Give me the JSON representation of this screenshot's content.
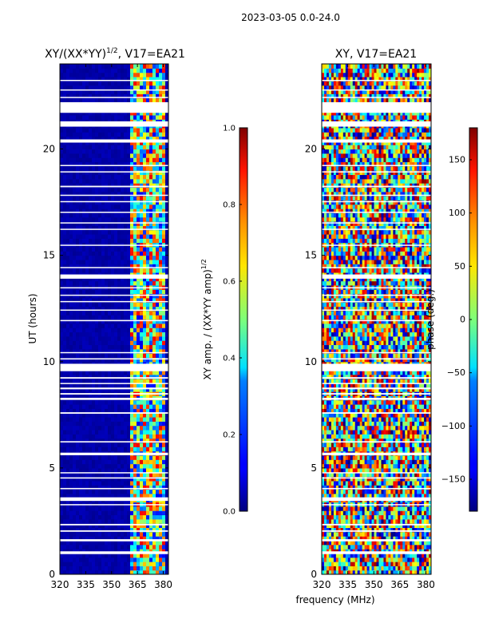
{
  "figure": {
    "suptitle": "2023-03-05 0.0-24.0",
    "shared_xlabel": "frequency (MHz)"
  },
  "chart_data": [
    {
      "type": "heatmap",
      "title_main": "XY/(XX*YY)",
      "title_sup": "1/2",
      "title_tail": ", V17=EA21",
      "xlabel": "",
      "ylabel": "UT (hours)",
      "xlim": [
        320,
        383
      ],
      "ylim": [
        0,
        24
      ],
      "xticks": [
        320,
        335,
        350,
        365,
        380
      ],
      "yticks": [
        0,
        5,
        10,
        15,
        20
      ],
      "colorbar": {
        "label": "XY amp. / (XX*YY amp)",
        "label_sup": "1/2",
        "range": [
          0,
          1
        ],
        "ticks": [
          "0.0",
          "0.2",
          "0.4",
          "0.6",
          "0.8",
          "1.0"
        ]
      },
      "colormap": "jet",
      "description_values": {
        "low_band_mhz": [
          320,
          360
        ],
        "low_band_level": 0.02,
        "high_band_mhz": [
          360,
          380
        ],
        "high_band_level_range": [
          0.1,
          0.9
        ]
      }
    },
    {
      "type": "heatmap",
      "title": "XY, V17=EA21",
      "xlabel": "frequency (MHz)",
      "ylabel": "",
      "xlim": [
        320,
        383
      ],
      "ylim": [
        0,
        24
      ],
      "xticks": [
        320,
        335,
        350,
        365,
        380
      ],
      "yticks": [
        0,
        5,
        10,
        15,
        20
      ],
      "colorbar": {
        "label": "phase (deg.)",
        "range": [
          -180,
          180
        ],
        "ticks": [
          "−150",
          "−100",
          "−50",
          "0",
          "50",
          "100",
          "150"
        ],
        "tick_values": [
          -150,
          -100,
          -50,
          0,
          50,
          100,
          150
        ]
      },
      "colormap": "jet",
      "description_values": {
        "phase_range_deg": [
          -180,
          180
        ]
      }
    }
  ],
  "flagged_gaps_ut_hours": [
    [
      0.95,
      1.08
    ],
    [
      1.55,
      1.65
    ],
    [
      2.0,
      2.07
    ],
    [
      2.3,
      2.37
    ],
    [
      3.25,
      3.3
    ],
    [
      3.45,
      3.62
    ],
    [
      4.0,
      4.06
    ],
    [
      4.5,
      4.56
    ],
    [
      4.75,
      4.8
    ],
    [
      5.6,
      5.72
    ],
    [
      6.2,
      6.26
    ],
    [
      7.55,
      7.62
    ],
    [
      8.2,
      8.3
    ],
    [
      8.45,
      8.52
    ],
    [
      8.7,
      8.78
    ],
    [
      8.95,
      9.0
    ],
    [
      9.2,
      9.27
    ],
    [
      9.55,
      9.9
    ],
    [
      10.1,
      10.16
    ],
    [
      10.4,
      10.45
    ],
    [
      11.9,
      11.96
    ],
    [
      12.4,
      12.45
    ],
    [
      12.8,
      12.85
    ],
    [
      13.1,
      13.15
    ],
    [
      13.45,
      13.5
    ],
    [
      13.9,
      14.1
    ],
    [
      14.4,
      14.45
    ],
    [
      15.45,
      15.5
    ],
    [
      16.2,
      16.25
    ],
    [
      16.5,
      16.55
    ],
    [
      17.0,
      17.05
    ],
    [
      17.5,
      17.55
    ],
    [
      17.8,
      17.85
    ],
    [
      18.2,
      18.27
    ],
    [
      18.9,
      18.95
    ],
    [
      19.2,
      19.25
    ],
    [
      20.3,
      20.45
    ],
    [
      21.05,
      21.3
    ],
    [
      21.7,
      22.2
    ],
    [
      22.4,
      22.45
    ],
    [
      22.75,
      22.8
    ],
    [
      23.2,
      23.25
    ]
  ]
}
